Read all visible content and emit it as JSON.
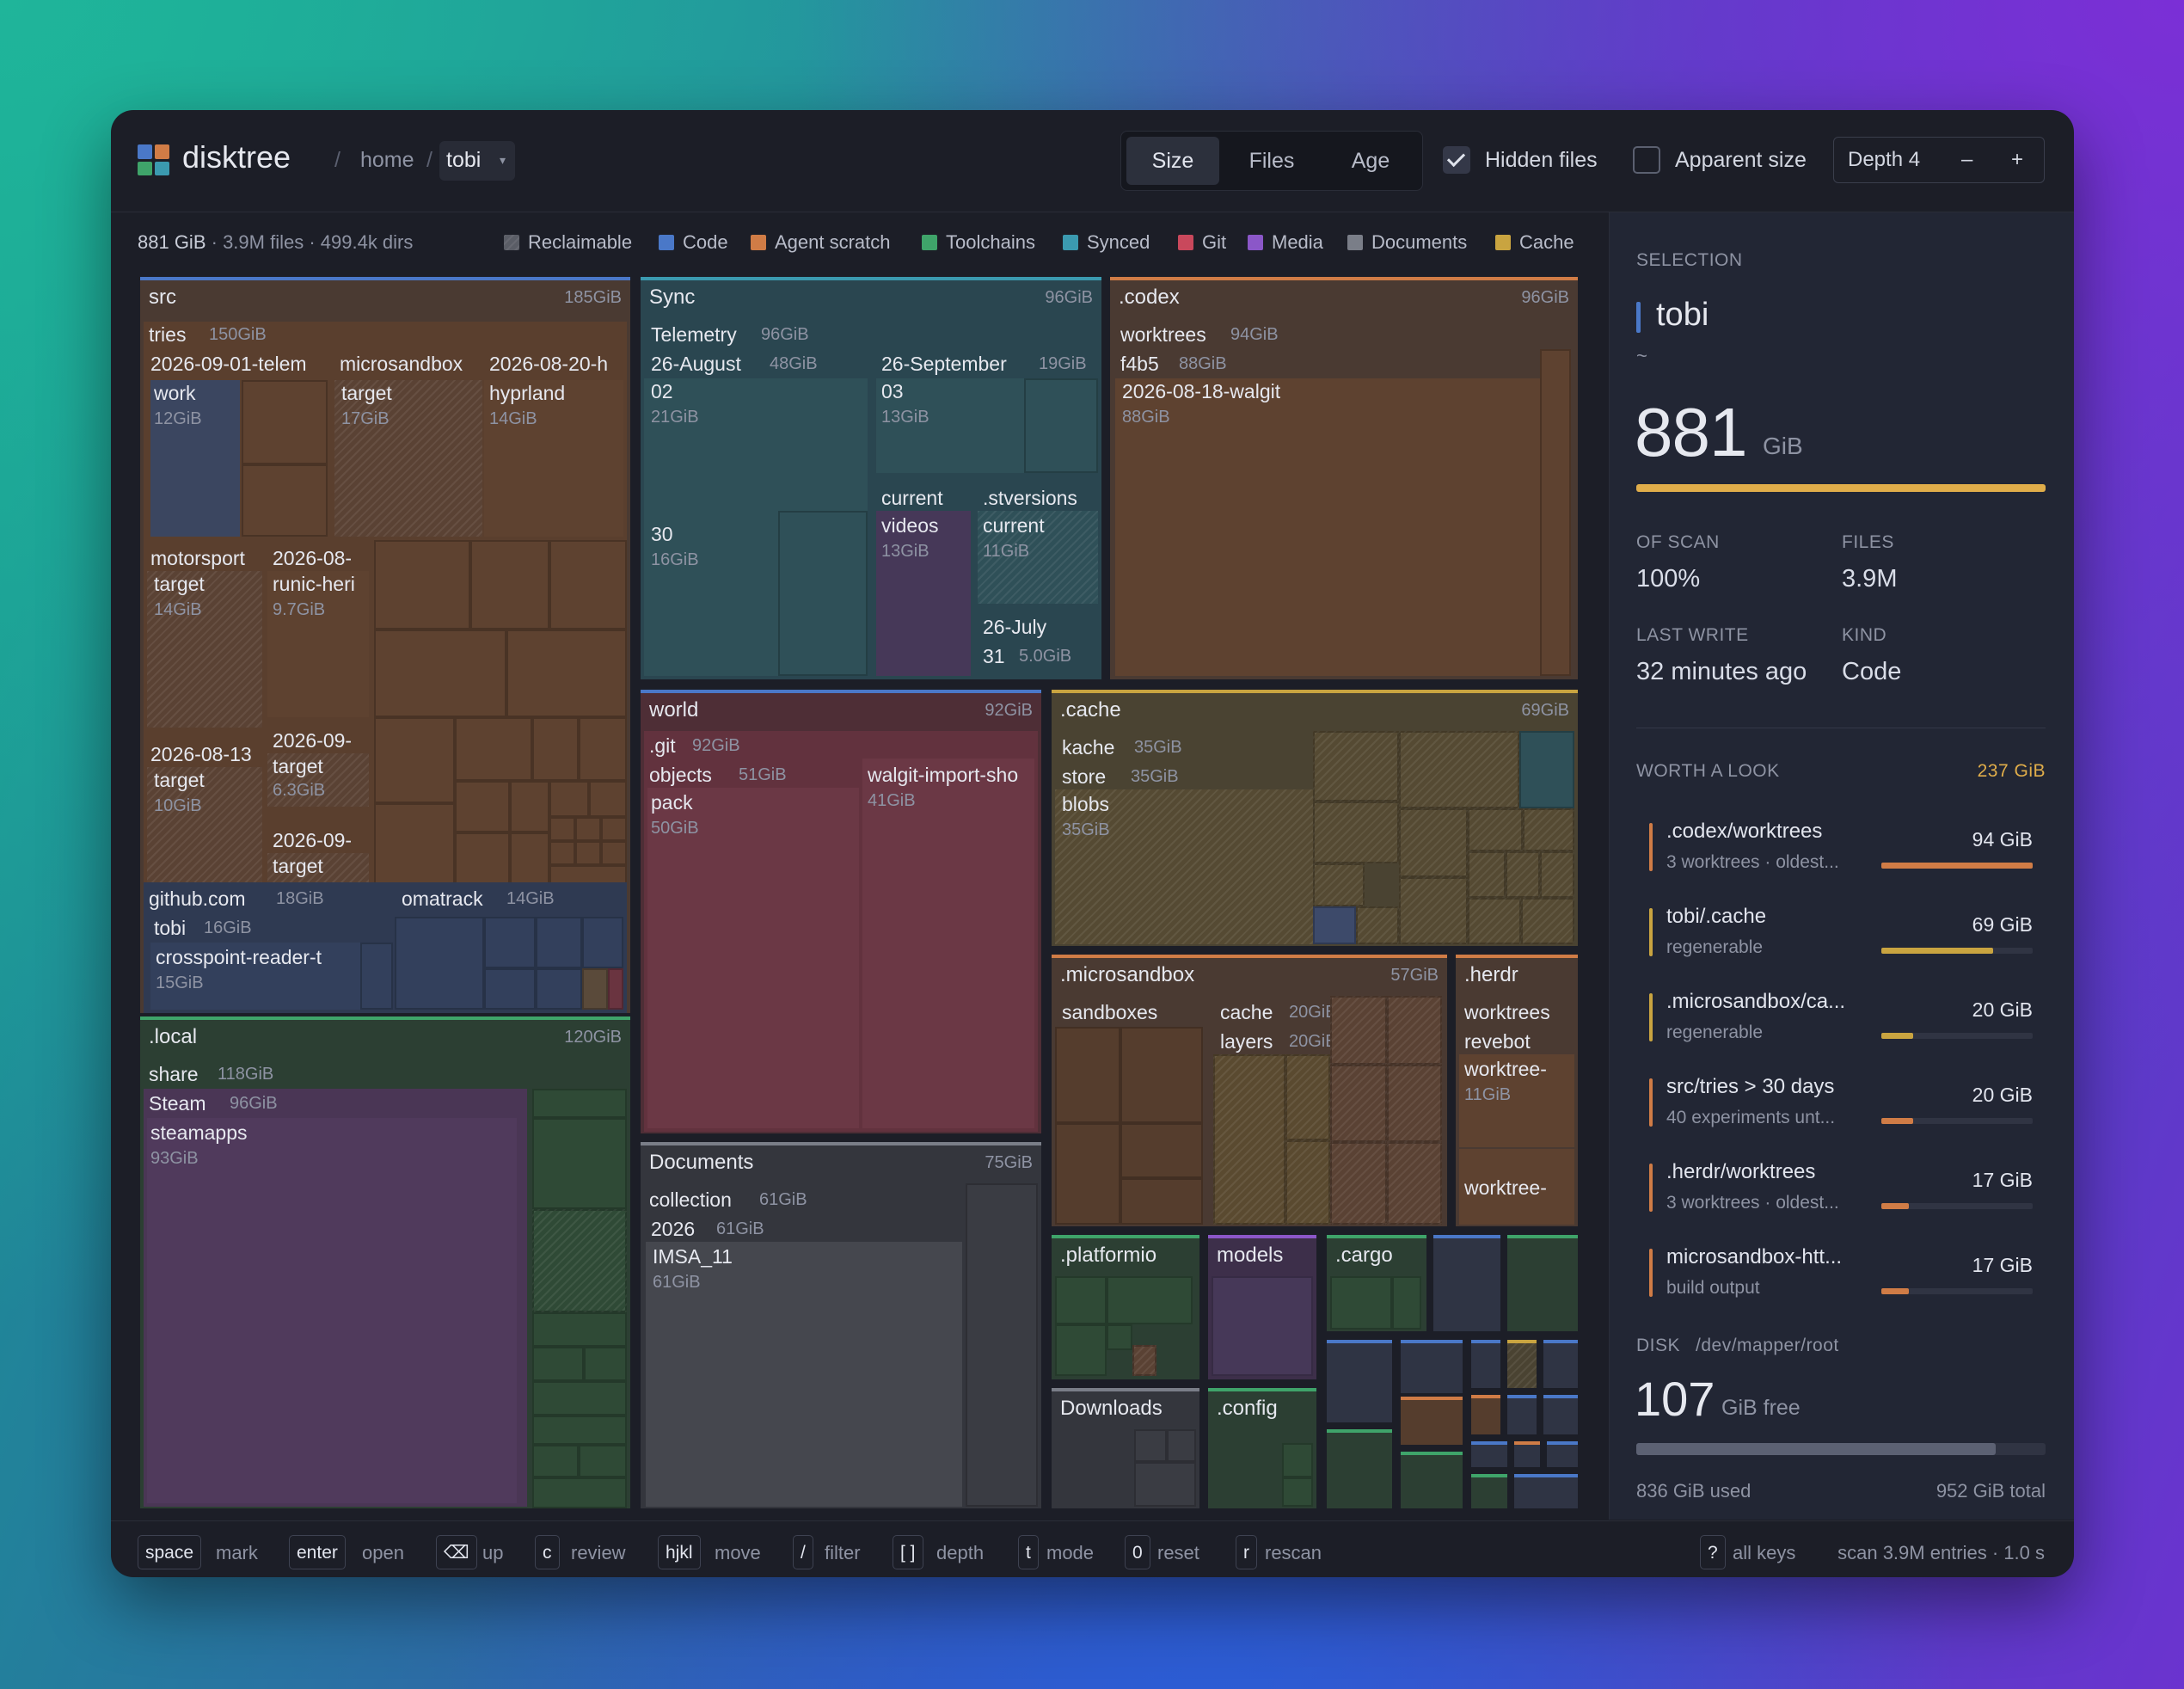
{
  "app": {
    "name": "disktree"
  },
  "breadcrumb": {
    "items": [
      "home"
    ],
    "current": "tobi"
  },
  "modes": {
    "tabs": [
      "Size",
      "Files",
      "Age"
    ],
    "active": "Size"
  },
  "options": {
    "hidden_files": {
      "label": "Hidden files",
      "checked": true
    },
    "apparent_size": {
      "label": "Apparent size",
      "checked": false
    }
  },
  "depth": {
    "label": "Depth 4",
    "minus": "–",
    "plus": "+"
  },
  "summary": {
    "size": "881 GiB",
    "counts": "· 3.9M files · 499.4k dirs"
  },
  "legend": [
    {
      "label": "Reclaimable",
      "color": "#5a5d66"
    },
    {
      "label": "Code",
      "color": "#4a78c8"
    },
    {
      "label": "Agent scratch",
      "color": "#d07c46"
    },
    {
      "label": "Toolchains",
      "color": "#3fa46a"
    },
    {
      "label": "Synced",
      "color": "#3b9ab0"
    },
    {
      "label": "Git",
      "color": "#c9485c"
    },
    {
      "label": "Media",
      "color": "#8b57c8"
    },
    {
      "label": "Documents",
      "color": "#7a7e88"
    },
    {
      "label": "Cache",
      "color": "#c9a440"
    }
  ],
  "treemap": {
    "src": {
      "name": "src",
      "size": "185GiB",
      "tries": "tries",
      "tries_size": "150GiB",
      "telem": "2026-09-01-telem",
      "work": "work",
      "work_size": "12GiB",
      "msb": "microsandbox",
      "msb_target": "target",
      "msb_target_size": "17GiB",
      "d0820": "2026-08-20-h",
      "hyprland": "hyprland",
      "hyprland_size": "14GiB",
      "motorsport": "motorsport",
      "ms_target": "target",
      "ms_target_size": "14GiB",
      "d08a": "2026-08-",
      "runic": "runic-heri",
      "runic_size": "9.7GiB",
      "d09a": "2026-09-",
      "t09a": "target",
      "t09a_size": "6.3GiB",
      "d0813": "2026-08-13",
      "t0813": "target",
      "t0813_size": "10GiB",
      "d09b": "2026-09-",
      "t09b": "target",
      "github": "github.com",
      "github_size": "18GiB",
      "gtobi": "tobi",
      "gtobi_size": "16GiB",
      "crosspoint": "crosspoint-reader-t",
      "crosspoint_size": "15GiB",
      "omatrack": "omatrack",
      "omatrack_size": "14GiB"
    },
    "local": {
      "name": ".local",
      "size": "120GiB",
      "share": "share",
      "share_size": "118GiB",
      "steam": "Steam",
      "steam_size": "96GiB",
      "steamapps": "steamapps",
      "steamapps_size": "93GiB"
    },
    "sync": {
      "name": "Sync",
      "size": "96GiB",
      "telemetry": "Telemetry",
      "telemetry_size": "96GiB",
      "aug": "26-August",
      "aug_size": "48GiB",
      "d02": "02",
      "d02_size": "21GiB",
      "d30": "30",
      "d30_size": "16GiB",
      "sep": "26-September",
      "sep_size": "19GiB",
      "d03": "03",
      "d03_size": "13GiB",
      "current": "current",
      "videos": "videos",
      "videos_size": "13GiB",
      "stversions": ".stversions",
      "st_current": "current",
      "st_current_size": "11GiB",
      "july": "26-July",
      "d31": "31",
      "d31_size": "5.0GiB"
    },
    "codex": {
      "name": ".codex",
      "size": "96GiB",
      "worktrees": "worktrees",
      "worktrees_size": "94GiB",
      "f4b5": "f4b5",
      "f4b5_size": "88GiB",
      "walgit": "2026-08-18-walgit",
      "walgit_size": "88GiB"
    },
    "world": {
      "name": "world",
      "size": "92GiB",
      "git": ".git",
      "git_size": "92GiB",
      "objects": "objects",
      "objects_size": "51GiB",
      "pack": "pack",
      "pack_size": "50GiB",
      "walgit": "walgit-import-sho",
      "walgit_size": "41GiB"
    },
    "cache": {
      "name": ".cache",
      "size": "69GiB",
      "kache": "kache",
      "kache_size": "35GiB",
      "store": "store",
      "store_size": "35GiB",
      "blobs": "blobs",
      "blobs_size": "35GiB"
    },
    "documents": {
      "name": "Documents",
      "size": "75GiB",
      "collection": "collection",
      "collection_size": "61GiB",
      "y2026": "2026",
      "y2026_size": "61GiB",
      "imsa": "IMSA_11",
      "imsa_size": "61GiB"
    },
    "microsandbox": {
      "name": ".microsandbox",
      "size": "57GiB",
      "sandboxes": "sandboxes",
      "cache": "cache",
      "cache_size": "20GiB",
      "layers": "layers",
      "layers_size": "20GiB"
    },
    "herdr": {
      "name": ".herdr",
      "worktrees": "worktrees",
      "revebot": "revebot",
      "wt1": "worktree-",
      "wt1_size": "11GiB",
      "wt2": "worktree-"
    },
    "platformio": {
      "name": ".platformio"
    },
    "models": {
      "name": "models"
    },
    "cargo": {
      "name": ".cargo"
    },
    "downloads": {
      "name": "Downloads"
    },
    "config": {
      "name": ".config"
    }
  },
  "selection": {
    "heading": "SELECTION",
    "name": "tobi",
    "path": "~",
    "size": "881",
    "unit": "GiB",
    "share_fraction": 1.0,
    "of_scan_label": "OF SCAN",
    "of_scan": "100%",
    "files_label": "FILES",
    "files": "3.9M",
    "last_write_label": "LAST WRITE",
    "last_write": "32 minutes ago",
    "kind_label": "KIND",
    "kind": "Code"
  },
  "worth_a_look": {
    "heading": "WORTH A LOOK",
    "total": "237 GiB",
    "items": [
      {
        "name": ".codex/worktrees",
        "desc": "3 worktrees · oldest...",
        "size": "94 GiB",
        "color": "#d07c46",
        "fraction": 1.0
      },
      {
        "name": "tobi/.cache",
        "desc": "regenerable",
        "size": "69 GiB",
        "color": "#c9a440",
        "fraction": 0.74
      },
      {
        "name": ".microsandbox/ca...",
        "desc": "regenerable",
        "size": "20 GiB",
        "color": "#c9a440",
        "fraction": 0.21
      },
      {
        "name": "src/tries > 30 days",
        "desc": "40 experiments unt...",
        "size": "20 GiB",
        "color": "#d07c46",
        "fraction": 0.21
      },
      {
        "name": ".herdr/worktrees",
        "desc": "3 worktrees · oldest...",
        "size": "17 GiB",
        "color": "#d07c46",
        "fraction": 0.18
      },
      {
        "name": "microsandbox-htt...",
        "desc": "build output",
        "size": "17 GiB",
        "color": "#d07c46",
        "fraction": 0.18
      }
    ]
  },
  "disk": {
    "label": "DISK",
    "device": "/dev/mapper/root",
    "free": "107",
    "free_label": "GiB free",
    "used_label": "836 GiB used",
    "total_label": "952 GiB total",
    "used_fraction": 0.878
  },
  "footer": {
    "keys": [
      {
        "key": "space",
        "desc": "mark"
      },
      {
        "key": "enter",
        "desc": "open"
      },
      {
        "key": "⌫",
        "desc": "up"
      },
      {
        "key": "c",
        "desc": "review"
      },
      {
        "key": "hjkl",
        "desc": "move"
      },
      {
        "key": "/",
        "desc": "filter"
      },
      {
        "key": "[ ]",
        "desc": "depth"
      },
      {
        "key": "t",
        "desc": "mode"
      },
      {
        "key": "0",
        "desc": "reset"
      },
      {
        "key": "r",
        "desc": "rescan"
      }
    ],
    "help_key": "?",
    "help_desc": "all keys",
    "scan_info": "scan 3.9M entries · 1.0 s"
  }
}
